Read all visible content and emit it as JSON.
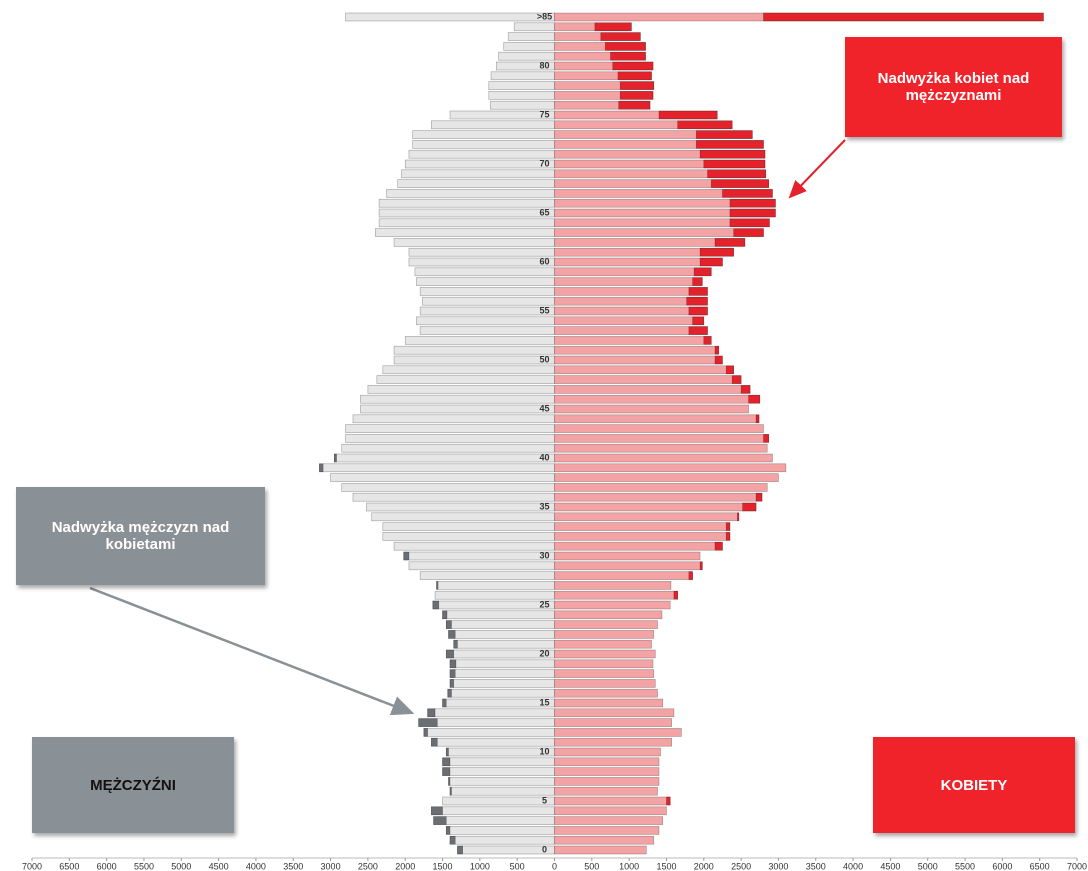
{
  "chart_data": {
    "type": "pyramid",
    "categories": [
      "0",
      null,
      null,
      null,
      null,
      "5",
      null,
      null,
      null,
      null,
      "10",
      null,
      null,
      null,
      null,
      "15",
      null,
      null,
      null,
      null,
      "20",
      null,
      null,
      null,
      null,
      "25",
      null,
      null,
      null,
      null,
      "30",
      null,
      null,
      null,
      null,
      "35",
      null,
      null,
      null,
      null,
      "40",
      null,
      null,
      null,
      null,
      "45",
      null,
      null,
      null,
      null,
      "50",
      null,
      null,
      null,
      null,
      "55",
      null,
      null,
      null,
      null,
      "60",
      null,
      null,
      null,
      null,
      "65",
      null,
      null,
      null,
      null,
      "70",
      null,
      null,
      null,
      null,
      "75",
      null,
      null,
      null,
      null,
      "80",
      null,
      null,
      null,
      null,
      ">85"
    ],
    "series": [
      {
        "name": "MĘŻCZYŹNI",
        "color": "#e6e6e6",
        "excess_color": "#6b6f73",
        "values": [
          -1300,
          -1400,
          -1450,
          -1620,
          -1650,
          -1500,
          -1400,
          -1420,
          -1500,
          -1500,
          -1450,
          -1650,
          -1750,
          -1820,
          -1700,
          -1500,
          -1430,
          -1400,
          -1400,
          -1400,
          -1450,
          -1350,
          -1420,
          -1450,
          -1500,
          -1630,
          -1600,
          -1580,
          -1800,
          -1950,
          -2020,
          -2150,
          -2300,
          -2300,
          -2450,
          -2520,
          -2700,
          -2850,
          -3000,
          -3150,
          -2950,
          -2850,
          -2800,
          -2800,
          -2700,
          -2600,
          -2600,
          -2500,
          -2380,
          -2300,
          -2150,
          -2150,
          -2000,
          -1800,
          -1850,
          -1800,
          -1770,
          -1800,
          -1850,
          -1870,
          -1950,
          -1950,
          -2150,
          -2400,
          -2350,
          -2350,
          -2350,
          -2250,
          -2100,
          -2050,
          -2000,
          -1950,
          -1900,
          -1900,
          -1650,
          -1400,
          -860,
          -880,
          -880,
          -850,
          -780,
          -750,
          -680,
          -620,
          -540,
          -2800
        ]
      },
      {
        "name": "KOBIETY",
        "color": "#f4a3a5",
        "excess_color": "#e3222b",
        "values": [
          1230,
          1330,
          1400,
          1450,
          1500,
          1550,
          1380,
          1400,
          1400,
          1400,
          1420,
          1570,
          1700,
          1570,
          1600,
          1450,
          1380,
          1350,
          1330,
          1320,
          1350,
          1300,
          1330,
          1380,
          1440,
          1550,
          1650,
          1560,
          1850,
          1980,
          1950,
          2250,
          2350,
          2350,
          2470,
          2700,
          2780,
          2850,
          3000,
          3100,
          2920,
          2850,
          2870,
          2800,
          2740,
          2600,
          2750,
          2620,
          2500,
          2400,
          2250,
          2200,
          2100,
          2050,
          2000,
          2050,
          2050,
          2050,
          1980,
          2100,
          2250,
          2400,
          2550,
          2800,
          2880,
          2960,
          2960,
          2920,
          2870,
          2830,
          2820,
          2820,
          2800,
          2650,
          2380,
          2180,
          1280,
          1320,
          1330,
          1300,
          1320,
          1220,
          1220,
          1150,
          1030,
          6550
        ]
      }
    ],
    "xlim": [
      -7000,
      7000
    ],
    "xticks": [
      {
        "value": -7000,
        "label": "7000"
      },
      {
        "value": -6500,
        "label": "6500"
      },
      {
        "value": -6000,
        "label": "6000"
      },
      {
        "value": -5500,
        "label": "5500"
      },
      {
        "value": -5000,
        "label": "5000"
      },
      {
        "value": -4500,
        "label": "4500"
      },
      {
        "value": -4000,
        "label": "4000"
      },
      {
        "value": -3500,
        "label": "3500"
      },
      {
        "value": -3000,
        "label": "3000"
      },
      {
        "value": -2500,
        "label": "2500"
      },
      {
        "value": -2000,
        "label": "2000"
      },
      {
        "value": -1500,
        "label": "1500"
      },
      {
        "value": -1000,
        "label": "1000"
      },
      {
        "value": -500,
        "label": "500"
      },
      0,
      500,
      1000,
      1500,
      2000,
      2500,
      3000,
      3500,
      4000,
      4500,
      5000,
      5500,
      6000,
      6500,
      7000
    ],
    "annotations": [
      "Nadwyżka kobiet nad mężczyznami",
      "Nadwyżka mężczyzn nad kobietami"
    ]
  }
}
